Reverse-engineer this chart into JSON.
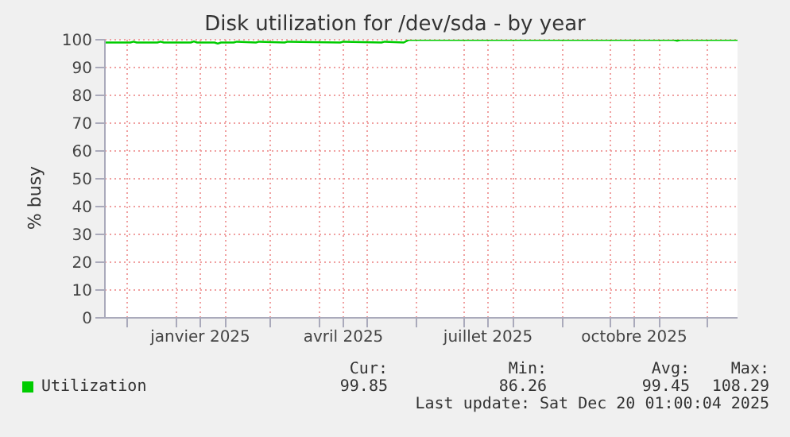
{
  "chart_data": {
    "type": "line",
    "title": "Disk utilization for /dev/sda - by year",
    "ylabel": "% busy",
    "x": [
      "2024-11-17",
      "2024-12-03",
      "2024-12-05",
      "2024-12-07",
      "2024-12-20",
      "2024-12-22",
      "2024-12-24",
      "2025-01-10",
      "2025-01-12",
      "2025-01-14",
      "2025-01-25",
      "2025-01-27",
      "2025-01-29",
      "2025-02-06",
      "2025-02-08",
      "2025-02-20",
      "2025-02-22",
      "2025-03-10",
      "2025-03-12",
      "2025-04-14",
      "2025-04-16",
      "2025-05-10",
      "2025-05-12",
      "2025-05-24",
      "2025-05-27",
      "2025-11-10",
      "2025-11-12",
      "2025-11-14",
      "2025-12-20"
    ],
    "series": [
      {
        "name": "Utilization",
        "color": "#00cc00",
        "values": [
          99.0,
          99.0,
          99.3,
          99.0,
          99.0,
          99.3,
          99.0,
          99.0,
          99.4,
          99.0,
          99.0,
          98.6,
          99.0,
          99.0,
          99.3,
          99.0,
          99.3,
          99.0,
          99.3,
          99.0,
          99.3,
          99.0,
          99.3,
          99.0,
          99.9,
          99.9,
          99.6,
          99.9,
          99.9
        ]
      }
    ],
    "xlim": [
      "2024-11-17",
      "2025-12-20"
    ],
    "xticks": [
      {
        "value": "2024-12-01",
        "label": null
      },
      {
        "value": "2025-01-01",
        "label": null
      },
      {
        "value": "2025-01-16",
        "label": "janvier 2025"
      },
      {
        "value": "2025-02-01",
        "label": null
      },
      {
        "value": "2025-03-01",
        "label": null
      },
      {
        "value": "2025-04-01",
        "label": null
      },
      {
        "value": "2025-04-16",
        "label": "avril 2025"
      },
      {
        "value": "2025-05-01",
        "label": null
      },
      {
        "value": "2025-06-01",
        "label": null
      },
      {
        "value": "2025-07-01",
        "label": null
      },
      {
        "value": "2025-07-16",
        "label": "juillet 2025"
      },
      {
        "value": "2025-08-01",
        "label": null
      },
      {
        "value": "2025-09-01",
        "label": null
      },
      {
        "value": "2025-10-01",
        "label": null
      },
      {
        "value": "2025-10-16",
        "label": "octobre 2025"
      },
      {
        "value": "2025-11-01",
        "label": null
      },
      {
        "value": "2025-12-01",
        "label": null
      }
    ],
    "ylim": [
      0,
      100
    ],
    "yticks": [
      0,
      10,
      20,
      30,
      40,
      50,
      60,
      70,
      80,
      90,
      100
    ],
    "grid": true,
    "legend": "bottom",
    "marker": "none",
    "line_style": "solid",
    "annotations": [
      "Cur:",
      "Min:",
      "Avg:",
      "Max:",
      "99.85",
      "86.26",
      "99.45",
      "108.29",
      "Last update: Sat Dec 20 01:00:04 2025"
    ]
  }
}
